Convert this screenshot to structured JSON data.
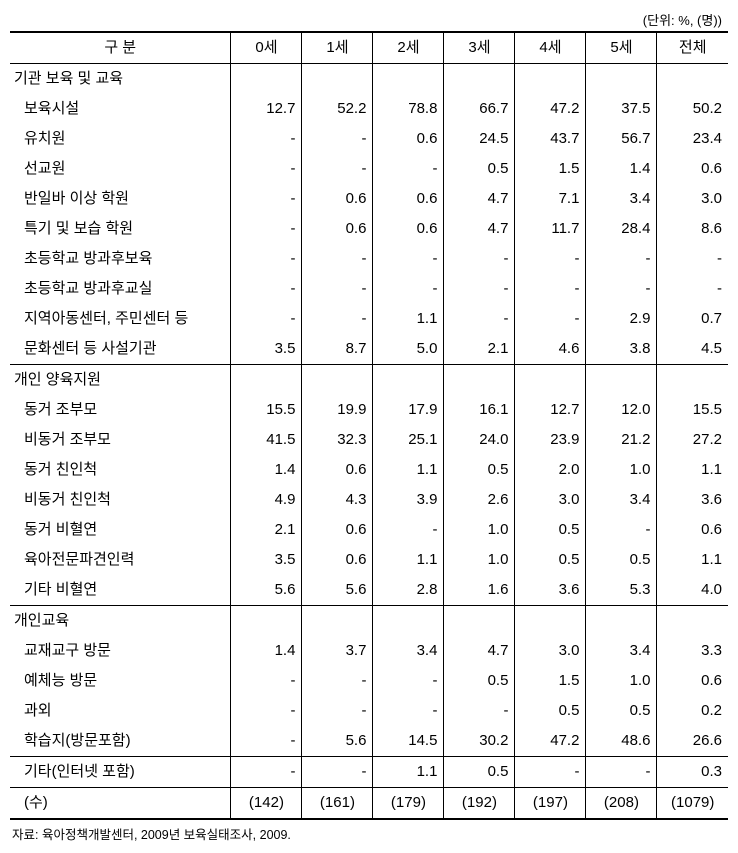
{
  "unit_label": "(단위: %, (명))",
  "header": {
    "category": "구 분",
    "ages": [
      "0세",
      "1세",
      "2세",
      "3세",
      "4세",
      "5세"
    ],
    "total": "전체"
  },
  "sections": [
    {
      "title": "기관 보육 및 교육",
      "rows": [
        {
          "label": "보육시설",
          "vals": [
            "12.7",
            "52.2",
            "78.8",
            "66.7",
            "47.2",
            "37.5",
            "50.2"
          ]
        },
        {
          "label": "유치원",
          "vals": [
            "-",
            "-",
            "0.6",
            "24.5",
            "43.7",
            "56.7",
            "23.4"
          ]
        },
        {
          "label": "선교원",
          "vals": [
            "-",
            "-",
            "-",
            "0.5",
            "1.5",
            "1.4",
            "0.6"
          ]
        },
        {
          "label": "반일바 이상 학원",
          "vals": [
            "-",
            "0.6",
            "0.6",
            "4.7",
            "7.1",
            "3.4",
            "3.0"
          ]
        },
        {
          "label": "특기 및 보습 학원",
          "vals": [
            "-",
            "0.6",
            "0.6",
            "4.7",
            "11.7",
            "28.4",
            "8.6"
          ]
        },
        {
          "label": "초등학교 방과후보육",
          "vals": [
            "-",
            "-",
            "-",
            "-",
            "-",
            "-",
            "-"
          ]
        },
        {
          "label": "초등학교 방과후교실",
          "vals": [
            "-",
            "-",
            "-",
            "-",
            "-",
            "-",
            "-"
          ]
        },
        {
          "label": "지역아동센터, 주민센터 등",
          "vals": [
            "-",
            "-",
            "1.1",
            "-",
            "-",
            "2.9",
            "0.7"
          ]
        },
        {
          "label": "문화센터 등 사설기관",
          "vals": [
            "3.5",
            "8.7",
            "5.0",
            "2.1",
            "4.6",
            "3.8",
            "4.5"
          ]
        }
      ]
    },
    {
      "title": "개인 양육지원",
      "rows": [
        {
          "label": "동거 조부모",
          "vals": [
            "15.5",
            "19.9",
            "17.9",
            "16.1",
            "12.7",
            "12.0",
            "15.5"
          ]
        },
        {
          "label": "비동거 조부모",
          "vals": [
            "41.5",
            "32.3",
            "25.1",
            "24.0",
            "23.9",
            "21.2",
            "27.2"
          ]
        },
        {
          "label": "동거 친인척",
          "vals": [
            "1.4",
            "0.6",
            "1.1",
            "0.5",
            "2.0",
            "1.0",
            "1.1"
          ]
        },
        {
          "label": "비동거 친인척",
          "vals": [
            "4.9",
            "4.3",
            "3.9",
            "2.6",
            "3.0",
            "3.4",
            "3.6"
          ]
        },
        {
          "label": "동거 비혈연",
          "vals": [
            "2.1",
            "0.6",
            "-",
            "1.0",
            "0.5",
            "-",
            "0.6"
          ]
        },
        {
          "label": "육아전문파견인력",
          "vals": [
            "3.5",
            "0.6",
            "1.1",
            "1.0",
            "0.5",
            "0.5",
            "1.1"
          ]
        },
        {
          "label": "기타 비혈연",
          "vals": [
            "5.6",
            "5.6",
            "2.8",
            "1.6",
            "3.6",
            "5.3",
            "4.0"
          ]
        }
      ]
    },
    {
      "title": "개인교육",
      "rows": [
        {
          "label": "교재교구 방문",
          "vals": [
            "1.4",
            "3.7",
            "3.4",
            "4.7",
            "3.0",
            "3.4",
            "3.3"
          ]
        },
        {
          "label": "예체능 방문",
          "vals": [
            "-",
            "-",
            "-",
            "0.5",
            "1.5",
            "1.0",
            "0.6"
          ]
        },
        {
          "label": "과외",
          "vals": [
            "-",
            "-",
            "-",
            "-",
            "0.5",
            "0.5",
            "0.2"
          ]
        },
        {
          "label": "학습지(방문포함)",
          "vals": [
            "-",
            "5.6",
            "14.5",
            "30.2",
            "47.2",
            "48.6",
            "26.6"
          ]
        }
      ]
    }
  ],
  "other": {
    "label": "기타(인터넷 포함)",
    "vals": [
      "-",
      "-",
      "1.1",
      "0.5",
      "-",
      "-",
      "0.3"
    ]
  },
  "count": {
    "label": "(수)",
    "vals": [
      "(142)",
      "(161)",
      "(179)",
      "(192)",
      "(197)",
      "(208)",
      "(1079)"
    ]
  },
  "source": "자료: 육아정책개발센터, 2009년 보육실태조사, 2009."
}
